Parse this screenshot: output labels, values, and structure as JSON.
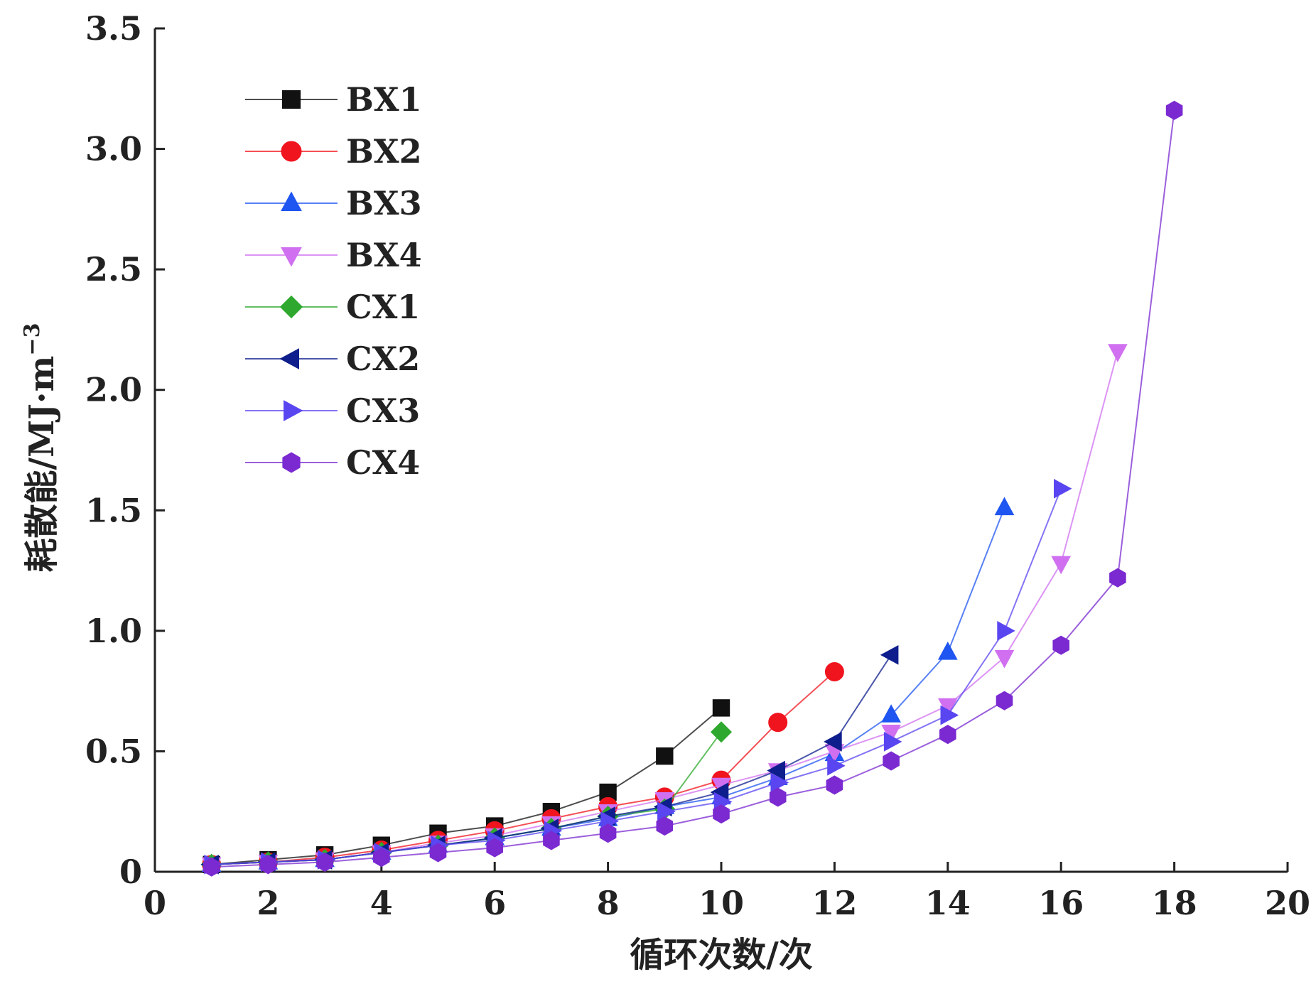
{
  "chart_data": {
    "type": "line",
    "title": "",
    "xlabel": "循环次数/次",
    "ylabel": "耗散能/MJ·m",
    "ylabel_sup": "−3",
    "xlim": [
      0,
      20
    ],
    "ylim": [
      0,
      3.5
    ],
    "xticks": [
      0,
      2,
      4,
      6,
      8,
      10,
      12,
      14,
      16,
      18,
      20
    ],
    "yticks": [
      0,
      0.5,
      1.0,
      1.5,
      2.0,
      2.5,
      3.0,
      3.5
    ],
    "xtick_labels": [
      "0",
      "2",
      "4",
      "6",
      "8",
      "10",
      "12",
      "14",
      "16",
      "18",
      "20"
    ],
    "ytick_labels": [
      "0",
      "0.5",
      "1.0",
      "1.5",
      "2.0",
      "2.5",
      "3.0",
      "3.5"
    ],
    "grid": false,
    "legend_position": "top-left",
    "series": [
      {
        "name": "BX1",
        "color": "#111111",
        "marker": "square",
        "x": [
          1,
          2,
          3,
          4,
          5,
          6,
          7,
          8,
          9,
          10
        ],
        "y": [
          0.03,
          0.05,
          0.07,
          0.11,
          0.16,
          0.19,
          0.25,
          0.33,
          0.48,
          0.68
        ]
      },
      {
        "name": "BX2",
        "color": "#f0141e",
        "marker": "circle",
        "x": [
          1,
          2,
          3,
          4,
          5,
          6,
          7,
          8,
          9,
          10,
          11,
          12
        ],
        "y": [
          0.03,
          0.04,
          0.06,
          0.09,
          0.13,
          0.17,
          0.22,
          0.27,
          0.31,
          0.38,
          0.62,
          0.83
        ]
      },
      {
        "name": "BX3",
        "color": "#1f55f0",
        "marker": "triangle-up",
        "x": [
          1,
          2,
          3,
          4,
          5,
          6,
          7,
          8,
          9,
          10,
          11,
          12,
          13,
          14,
          15
        ],
        "y": [
          0.03,
          0.04,
          0.05,
          0.08,
          0.11,
          0.14,
          0.18,
          0.22,
          0.27,
          0.31,
          0.39,
          0.49,
          0.65,
          0.91,
          1.51
        ]
      },
      {
        "name": "BX4",
        "color": "#d070f0",
        "marker": "triangle-down",
        "x": [
          1,
          2,
          3,
          4,
          5,
          6,
          7,
          8,
          9,
          10,
          11,
          12,
          13,
          14,
          15,
          16,
          17
        ],
        "y": [
          0.03,
          0.04,
          0.05,
          0.08,
          0.12,
          0.15,
          0.2,
          0.25,
          0.3,
          0.36,
          0.42,
          0.5,
          0.58,
          0.69,
          0.89,
          1.28,
          2.16
        ]
      },
      {
        "name": "CX1",
        "color": "#2ea82e",
        "marker": "diamond",
        "x": [
          1,
          2,
          3,
          4,
          5,
          6,
          7,
          8,
          9,
          10
        ],
        "y": [
          0.03,
          0.04,
          0.05,
          0.08,
          0.11,
          0.14,
          0.18,
          0.23,
          0.26,
          0.58
        ]
      },
      {
        "name": "CX2",
        "color": "#0e1e8c",
        "marker": "triangle-left",
        "x": [
          1,
          2,
          3,
          4,
          5,
          6,
          7,
          8,
          9,
          10,
          11,
          12,
          13
        ],
        "y": [
          0.03,
          0.04,
          0.05,
          0.08,
          0.11,
          0.14,
          0.18,
          0.23,
          0.27,
          0.33,
          0.42,
          0.54,
          0.9
        ]
      },
      {
        "name": "CX3",
        "color": "#5a46f0",
        "marker": "triangle-right",
        "x": [
          1,
          2,
          3,
          4,
          5,
          6,
          7,
          8,
          9,
          10,
          11,
          12,
          13,
          14,
          15,
          16
        ],
        "y": [
          0.03,
          0.04,
          0.05,
          0.08,
          0.11,
          0.13,
          0.17,
          0.21,
          0.25,
          0.29,
          0.37,
          0.44,
          0.54,
          0.65,
          1.0,
          1.59
        ]
      },
      {
        "name": "CX4",
        "color": "#7a2ad0",
        "marker": "hexagon",
        "x": [
          1,
          2,
          3,
          4,
          5,
          6,
          7,
          8,
          9,
          10,
          11,
          12,
          13,
          14,
          15,
          16,
          17,
          18
        ],
        "y": [
          0.02,
          0.03,
          0.04,
          0.06,
          0.08,
          0.1,
          0.13,
          0.16,
          0.19,
          0.24,
          0.31,
          0.36,
          0.46,
          0.57,
          0.71,
          0.94,
          1.22,
          3.16
        ]
      }
    ]
  }
}
